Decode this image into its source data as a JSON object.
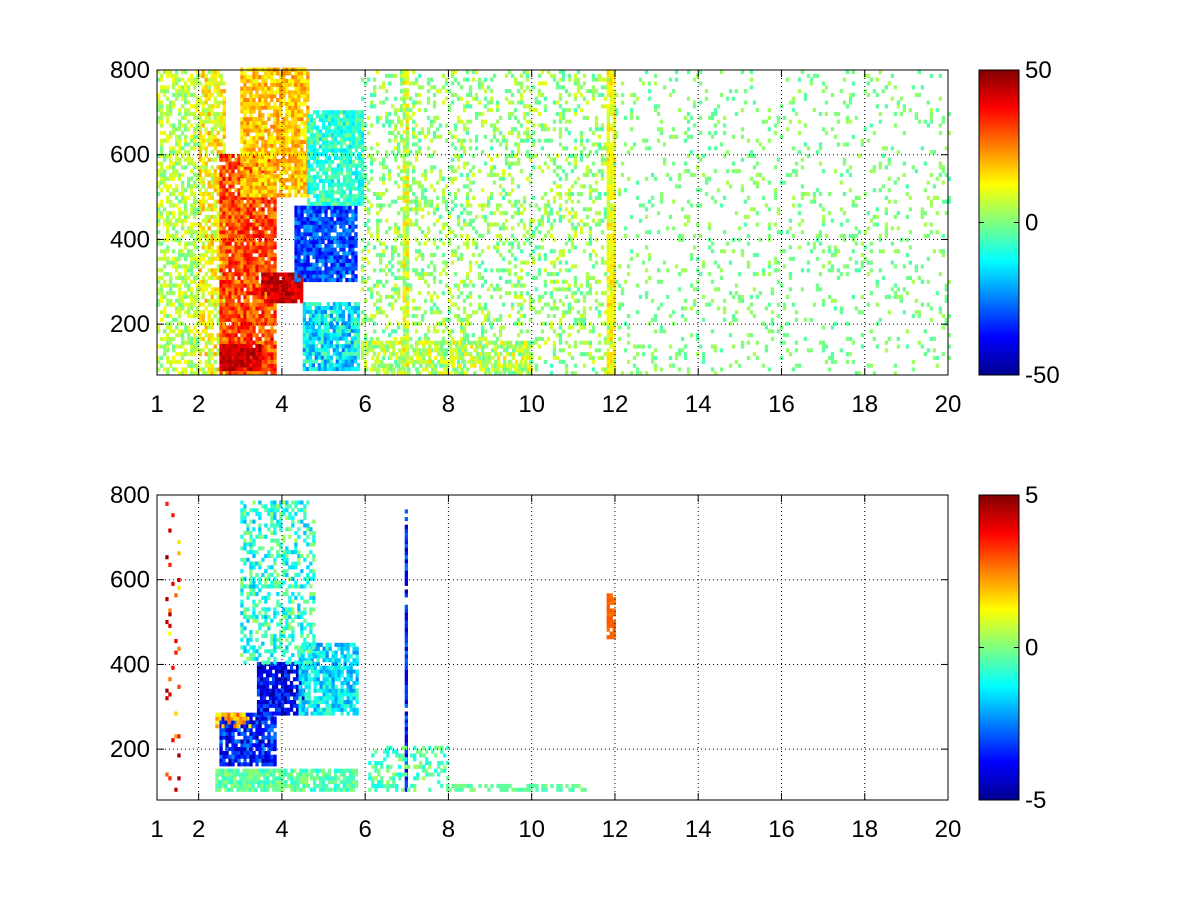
{
  "figure_background": "#ffffff",
  "chart_data": [
    {
      "type": "heatmap",
      "title": "",
      "xlabel": "",
      "ylabel": "",
      "xlim": [
        1,
        20
      ],
      "ylim": [
        80,
        800
      ],
      "x_ticks": [
        1,
        2,
        4,
        6,
        8,
        10,
        12,
        14,
        16,
        18,
        20
      ],
      "x_tick_labels": [
        "1",
        "2",
        "4",
        "6",
        "8",
        "10",
        "12",
        "14",
        "16",
        "18",
        "20"
      ],
      "y_ticks": [
        200,
        400,
        600,
        800
      ],
      "y_tick_labels": [
        "200",
        "400",
        "600",
        "800"
      ],
      "grid": true,
      "grid_style": "dotted",
      "colormap": "jet",
      "color_limits": [
        -50,
        50
      ],
      "colorbar": {
        "position": "right",
        "ticks": [
          -50,
          0,
          50
        ],
        "tick_labels": [
          "-50",
          "0",
          "50"
        ]
      },
      "notes_visible": "dense field; strong positive values (red) for x 2.5-4.5, y 100-700; negative band (blue) curving from x 4 y 300 to x 5.8 y 450; sparse speckle for x > 6; vertical streaks near x 7 and x 12",
      "regions": [
        {
          "x": [
            1.0,
            2.0
          ],
          "y": [
            80,
            800
          ],
          "value": 5,
          "density": 0.55,
          "spread": 8
        },
        {
          "x": [
            2.0,
            2.6
          ],
          "y": [
            80,
            800
          ],
          "value": 12,
          "density": 0.7,
          "spread": 10
        },
        {
          "x": [
            2.5,
            3.8
          ],
          "y": [
            80,
            600
          ],
          "value": 30,
          "density": 0.9,
          "spread": 10
        },
        {
          "x": [
            3.0,
            4.6
          ],
          "y": [
            500,
            800
          ],
          "value": 18,
          "density": 0.85,
          "spread": 8
        },
        {
          "x": [
            3.5,
            4.5
          ],
          "y": [
            250,
            320
          ],
          "value": 42,
          "density": 0.95,
          "spread": 6
        },
        {
          "x": [
            2.5,
            3.5
          ],
          "y": [
            90,
            150
          ],
          "value": 42,
          "density": 0.95,
          "spread": 6
        },
        {
          "x": [
            4.3,
            5.8
          ],
          "y": [
            300,
            480
          ],
          "value": -30,
          "density": 0.9,
          "spread": 10
        },
        {
          "x": [
            4.5,
            5.8
          ],
          "y": [
            90,
            250
          ],
          "value": -15,
          "density": 0.85,
          "spread": 12
        },
        {
          "x": [
            4.6,
            5.9
          ],
          "y": [
            480,
            700
          ],
          "value": -8,
          "density": 0.8,
          "spread": 8
        },
        {
          "x": [
            5.9,
            12.0
          ],
          "y": [
            80,
            800
          ],
          "value": 2,
          "density": 0.28,
          "spread": 8
        },
        {
          "x": [
            6.0,
            10.0
          ],
          "y": [
            80,
            160
          ],
          "value": 6,
          "density": 0.6,
          "spread": 10
        },
        {
          "x": [
            6.9,
            7.0
          ],
          "y": [
            100,
            800
          ],
          "value": 8,
          "density": 0.9,
          "spread": 10
        },
        {
          "x": [
            11.8,
            11.95
          ],
          "y": [
            80,
            800
          ],
          "value": 12,
          "density": 0.85,
          "spread": 6
        },
        {
          "x": [
            12.0,
            20.0
          ],
          "y": [
            80,
            800
          ],
          "value": 0,
          "density": 0.12,
          "spread": 5
        }
      ]
    },
    {
      "type": "heatmap",
      "title": "",
      "xlabel": "",
      "ylabel": "",
      "xlim": [
        1,
        20
      ],
      "ylim": [
        80,
        800
      ],
      "x_ticks": [
        1,
        2,
        4,
        6,
        8,
        10,
        12,
        14,
        16,
        18,
        20
      ],
      "x_tick_labels": [
        "1",
        "2",
        "4",
        "6",
        "8",
        "10",
        "12",
        "14",
        "16",
        "18",
        "20"
      ],
      "y_ticks": [
        200,
        400,
        600,
        800
      ],
      "y_tick_labels": [
        "200",
        "400",
        "600",
        "800"
      ],
      "grid": true,
      "grid_style": "dotted",
      "colormap": "jet",
      "color_limits": [
        -5,
        5
      ],
      "colorbar": {
        "position": "right",
        "ticks": [
          -5,
          0,
          5
        ],
        "tick_labels": [
          "-5",
          "0",
          "5"
        ]
      },
      "notes_visible": "values mostly -4 to 0 in region x 2-5.8, y 100-700; light green band y 100-150; isolated vertical blue streak at x 7; small orange marks near x 12 y 470-550",
      "regions": [
        {
          "x": [
            2.4,
            4.6
          ],
          "y": [
            100,
            150
          ],
          "value": -0.3,
          "density": 0.9,
          "spread": 0.6
        },
        {
          "x": [
            4.6,
            5.8
          ],
          "y": [
            100,
            150
          ],
          "value": -0.5,
          "density": 0.8,
          "spread": 0.6
        },
        {
          "x": [
            2.5,
            3.8
          ],
          "y": [
            160,
            280
          ],
          "value": -3.5,
          "density": 0.85,
          "spread": 1.2
        },
        {
          "x": [
            3.4,
            4.6
          ],
          "y": [
            280,
            400
          ],
          "value": -3.8,
          "density": 0.85,
          "spread": 1.0
        },
        {
          "x": [
            4.4,
            5.8
          ],
          "y": [
            280,
            450
          ],
          "value": -1.5,
          "density": 0.75,
          "spread": 1.0
        },
        {
          "x": [
            3.0,
            4.8
          ],
          "y": [
            400,
            780
          ],
          "value": -0.8,
          "density": 0.45,
          "spread": 1.2
        },
        {
          "x": [
            2.4,
            3.2
          ],
          "y": [
            250,
            280
          ],
          "value": 2.0,
          "density": 0.6,
          "spread": 1.0
        },
        {
          "x": [
            1.2,
            1.5
          ],
          "y": [
            100,
            780
          ],
          "value": 3.0,
          "density": 0.1,
          "spread": 2.0
        },
        {
          "x": [
            6.95,
            7.0
          ],
          "y": [
            100,
            760
          ],
          "value": -3.5,
          "density": 0.9,
          "spread": 1.0
        },
        {
          "x": [
            6.0,
            8.0
          ],
          "y": [
            100,
            200
          ],
          "value": -0.4,
          "density": 0.35,
          "spread": 0.8
        },
        {
          "x": [
            8.0,
            11.3
          ],
          "y": [
            100,
            115
          ],
          "value": -0.3,
          "density": 0.5,
          "spread": 0.4
        },
        {
          "x": [
            11.8,
            11.95
          ],
          "y": [
            460,
            560
          ],
          "value": 2.8,
          "density": 0.8,
          "spread": 0.2
        }
      ]
    }
  ]
}
